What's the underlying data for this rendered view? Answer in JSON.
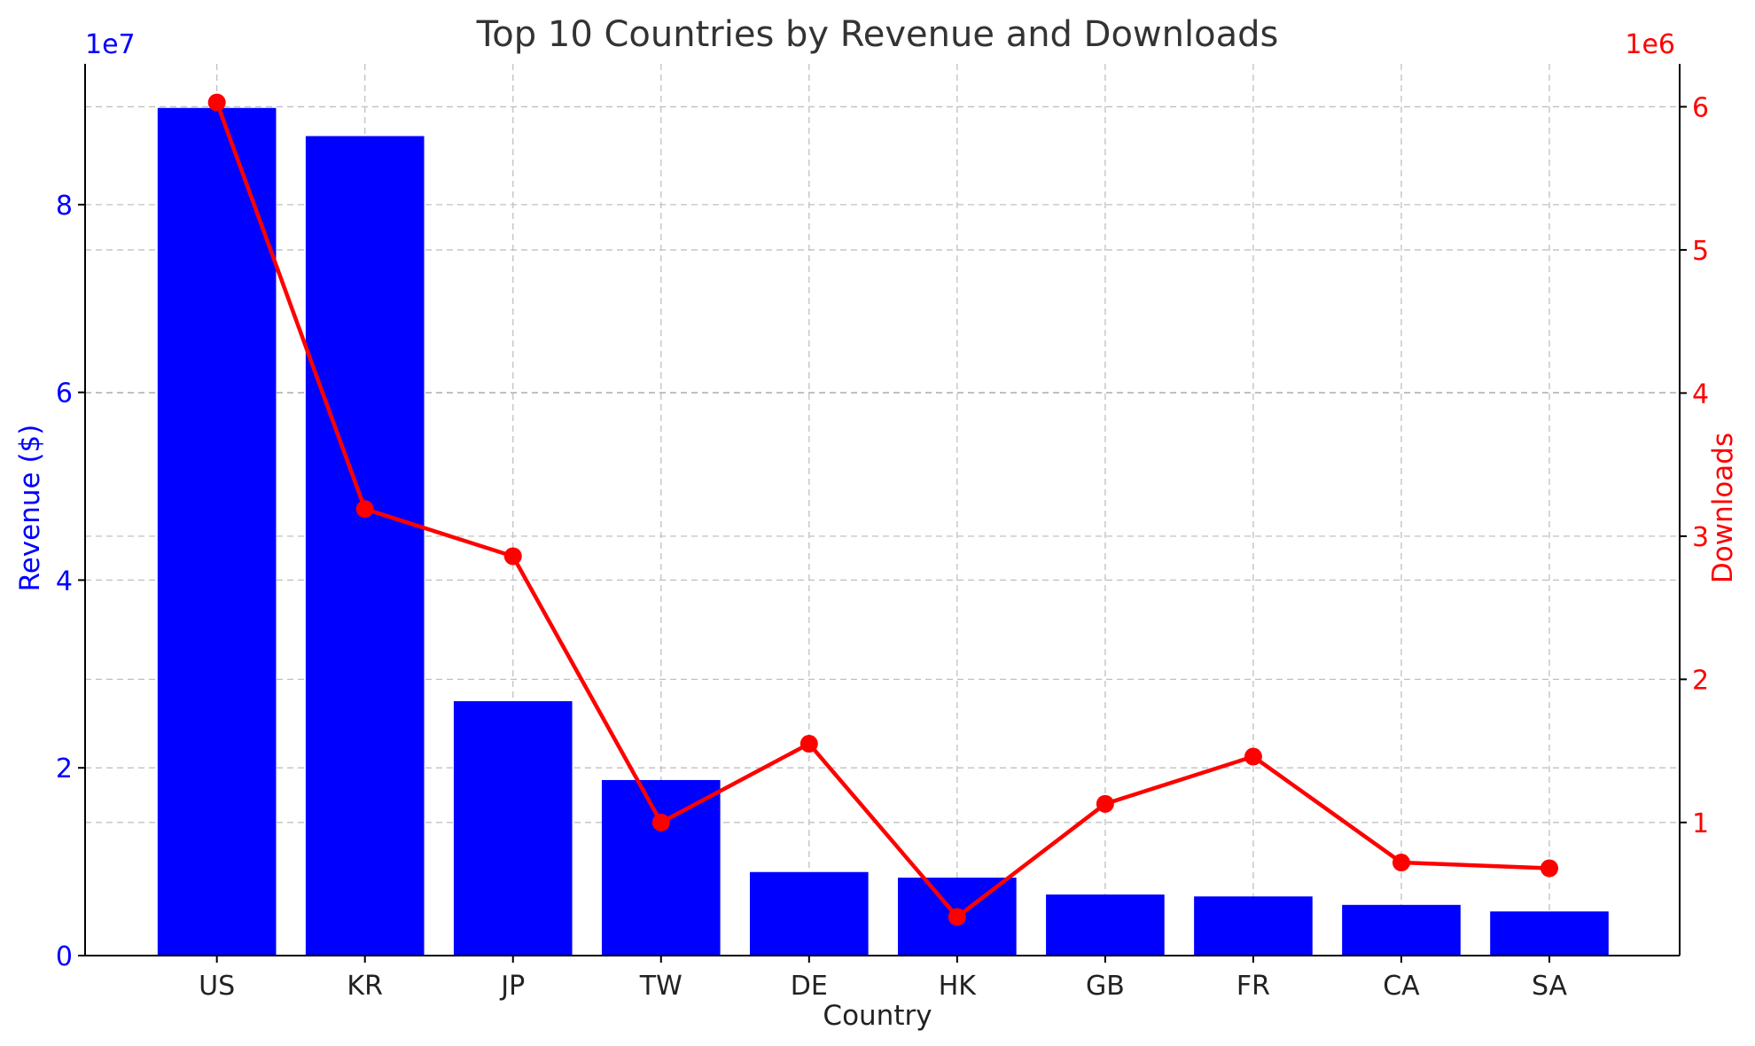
{
  "chart_data": {
    "type": "bar+line",
    "title": "Top 10 Countries by Revenue and Downloads",
    "xlabel": "Country",
    "categories": [
      "US",
      "KR",
      "JP",
      "TW",
      "DE",
      "HK",
      "GB",
      "FR",
      "CA",
      "SA"
    ],
    "grid": true,
    "left_axis": {
      "label": "Revenue ($)",
      "offset_label": "1e7",
      "scale": 10000000,
      "ylim": [
        0,
        9.5
      ],
      "ticks": [
        "0",
        "2",
        "4",
        "6",
        "8"
      ],
      "color": "#0000ff"
    },
    "right_axis": {
      "label": "Downloads",
      "offset_label": "1e6",
      "scale": 1000000,
      "ylim": [
        0.07,
        6.3
      ],
      "ticks": [
        "1",
        "2",
        "3",
        "4",
        "5",
        "6"
      ],
      "color": "#ff0000"
    },
    "series": [
      {
        "name": "Revenue ($)",
        "type": "bar",
        "axis": "left",
        "color": "#0000ff",
        "values": [
          90300000,
          87300000,
          27100000,
          18700000,
          8900000,
          8300000,
          6500000,
          6300000,
          5400000,
          4700000
        ]
      },
      {
        "name": "Downloads",
        "type": "line",
        "axis": "right",
        "color": "#ff0000",
        "values": [
          6030000,
          3190000,
          2860000,
          1000000,
          1550000,
          340000,
          1130000,
          1460000,
          720000,
          680000
        ]
      }
    ]
  }
}
